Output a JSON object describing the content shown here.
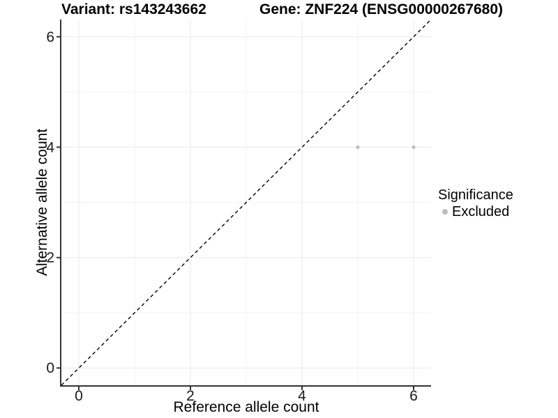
{
  "figure": {
    "title_left": "Variant: rs143243662",
    "title_right": "Gene: ZNF224 (ENSG00000267680)"
  },
  "chart_data": {
    "type": "scatter",
    "title": "Variant: rs143243662   Gene: ZNF224 (ENSG00000267680)",
    "xlabel": "Reference allele count",
    "ylabel": "Alternative allele count",
    "xlim": [
      -0.3125,
      6.3125
    ],
    "ylim": [
      -0.3125,
      6.3125
    ],
    "x_ticks": [
      0,
      2,
      4,
      6
    ],
    "y_ticks": [
      0,
      2,
      4,
      6
    ],
    "minor_grid": [
      1,
      3,
      5
    ],
    "grid": "on",
    "series": [
      {
        "name": "Excluded",
        "type": "scatter",
        "marker": "circle",
        "color": "#bebebe",
        "points": [
          [
            5,
            4
          ],
          [
            6,
            4
          ]
        ]
      }
    ],
    "reference_line": {
      "label": "y = x",
      "slope": 1,
      "intercept": 0,
      "style": "dashed",
      "color": "#000000"
    },
    "legend": {
      "title": "Significance",
      "position": "right",
      "items": [
        {
          "label": "Excluded",
          "color": "#bebebe",
          "marker": "circle"
        }
      ]
    }
  },
  "colors": {
    "point": "#bebebe",
    "axis": "#333333",
    "tick_text": "#1a1a1a",
    "grid_major": "#e8e8e8",
    "grid_minor": "#f3f3f3",
    "background": "#ffffff"
  }
}
